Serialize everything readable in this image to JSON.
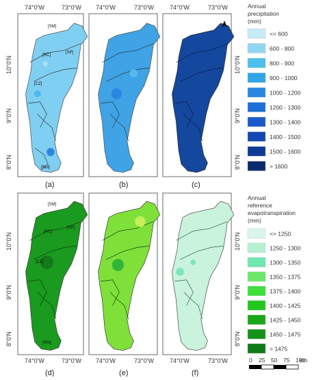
{
  "top_axis_labels": [
    "74°0'W",
    "73°0'W"
  ],
  "bottom_axis_labels": [
    "74°0'W",
    "73°0'W"
  ],
  "lat_labels": [
    "10°0'N",
    "9°0'N",
    "8°0'N"
  ],
  "panels_top": [
    "(a)",
    "(b)",
    "(c)"
  ],
  "panels_bottom": [
    "(d)",
    "(e)",
    "(f)"
  ],
  "regions": [
    "[SM]",
    "[RC]",
    "[SP]",
    "[CZ]",
    "[RM]"
  ],
  "north_arrow": "north-arrow",
  "legend_precip": {
    "title": [
      "Annual",
      "precipitation",
      "(mm)"
    ],
    "items": [
      {
        "label": "<= 600",
        "color": "#c6ecf7"
      },
      {
        "label": "600 - 800",
        "color": "#93d6f2"
      },
      {
        "label": "800 - 900",
        "color": "#4fc0ee"
      },
      {
        "label": "900 - 1000",
        "color": "#2ea6e8"
      },
      {
        "label": "1000 - 1200",
        "color": "#2a86e0"
      },
      {
        "label": "1200 - 1300",
        "color": "#1e6fd8"
      },
      {
        "label": "1300 - 1400",
        "color": "#1a5acb"
      },
      {
        "label": "1400 - 1500",
        "color": "#1447b2"
      },
      {
        "label": "1500 - 1600",
        "color": "#0e3a97"
      },
      {
        "label": "> 1600",
        "color": "#0b2a6e"
      }
    ]
  },
  "legend_et": {
    "title": [
      "Annual",
      "reference",
      "evapotranspiration",
      "(mm)"
    ],
    "items": [
      {
        "label": "<= 1250",
        "color": "#d9f6ec"
      },
      {
        "label": "1250 - 1300",
        "color": "#b6f2d0"
      },
      {
        "label": "1300 - 1350",
        "color": "#6fe8b0"
      },
      {
        "label": "1350 - 1375",
        "color": "#6ee86a"
      },
      {
        "label": "1375 - 1400",
        "color": "#3fe03a"
      },
      {
        "label": "1400 - 1425",
        "color": "#22c81e"
      },
      {
        "label": "1425 - 1450",
        "color": "#1aa818"
      },
      {
        "label": "1450 - 1475",
        "color": "#14921a"
      },
      {
        "label": "> 1475",
        "color": "#0f7a18"
      }
    ]
  },
  "scale_bar": {
    "ticks": [
      "0",
      "25",
      "50",
      "75",
      "100"
    ],
    "unit": "km"
  },
  "panel_fills": {
    "a": "#7fcff2",
    "b": "#3fa3e6",
    "c": "#14479e",
    "d": "#1a9a1e",
    "e": "#7fe03a",
    "f": "#c9f3dc"
  }
}
